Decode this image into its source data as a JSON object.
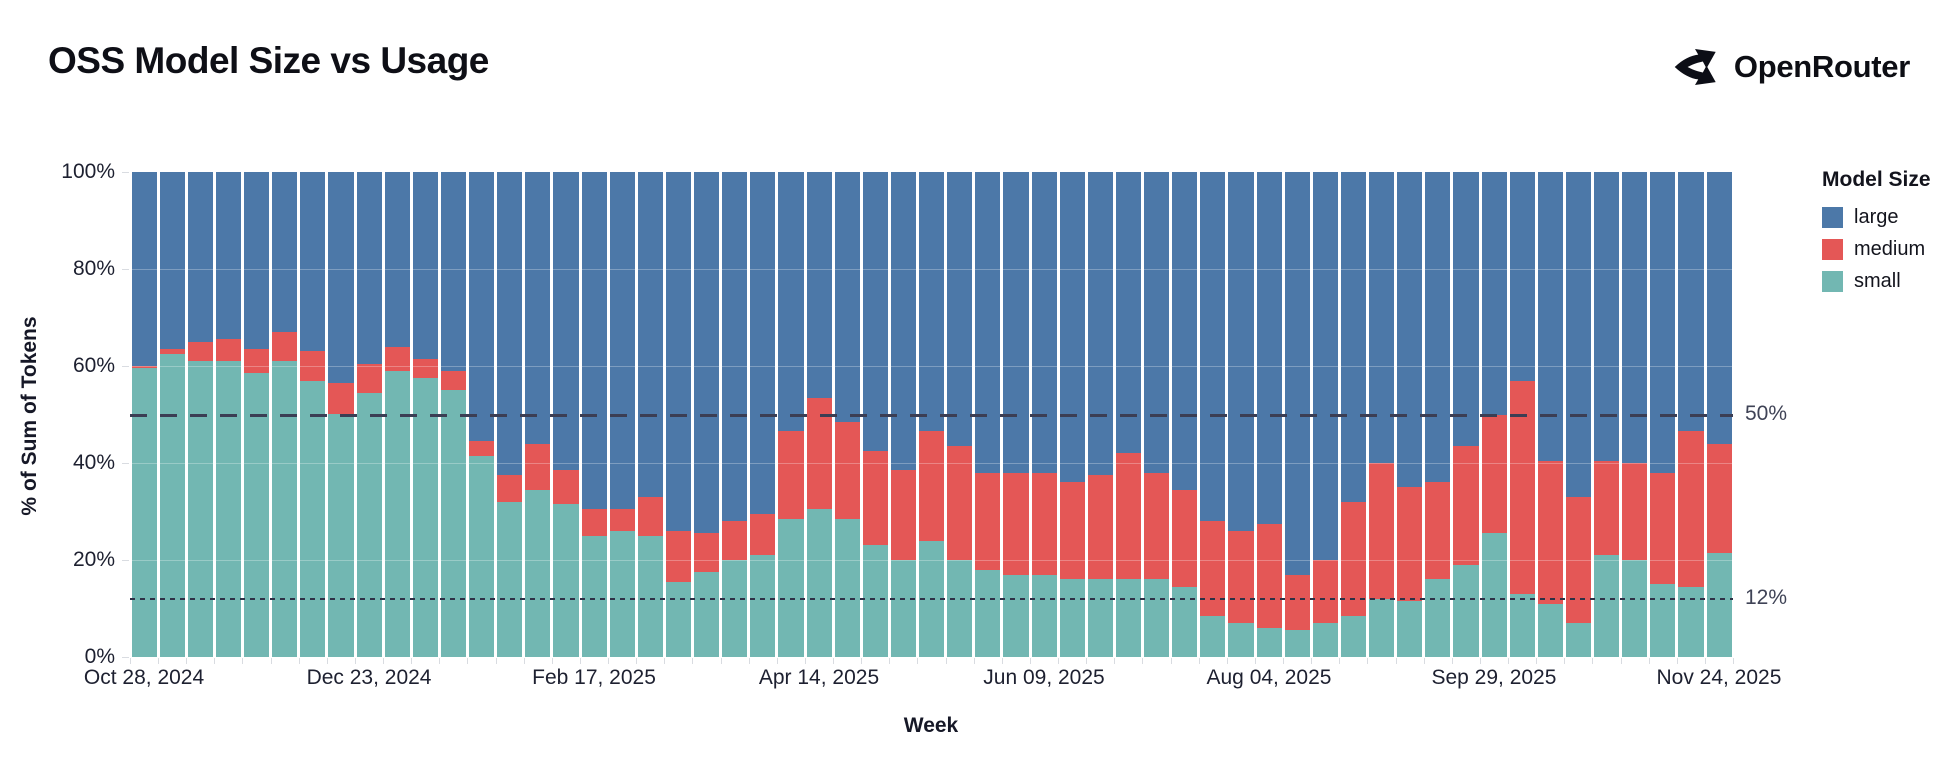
{
  "header": {
    "title": "OSS Model Size vs Usage",
    "brand": "OpenRouter"
  },
  "annotations": {
    "ref_50_label": "50%",
    "ref_12_label": "12%"
  },
  "chart_data": {
    "type": "bar",
    "stacked": true,
    "title": "OSS Model Size vs Usage",
    "xlabel": "Week",
    "ylabel": "% of Sum of Tokens",
    "legend_title": "Model Size",
    "legend_position": "right",
    "legend_order": [
      "large",
      "medium",
      "small"
    ],
    "grid": true,
    "ylim": [
      0,
      100
    ],
    "y_ticks": [
      "0%",
      "20%",
      "40%",
      "60%",
      "80%",
      "100%"
    ],
    "y_tick_values": [
      0,
      20,
      40,
      60,
      80,
      100
    ],
    "x_tick_labels": [
      "Oct 28, 2024",
      "Dec 23, 2024",
      "Feb 17, 2025",
      "Apr 14, 2025",
      "Jun 09, 2025",
      "Aug 04, 2025",
      "Sep 29, 2025",
      "Nov 24, 2025"
    ],
    "x_tick_bar_indices": [
      0,
      8,
      16,
      24,
      32,
      40,
      48,
      56
    ],
    "weeks": [
      "2024-10-28",
      "2024-11-04",
      "2024-11-11",
      "2024-11-18",
      "2024-11-25",
      "2024-12-02",
      "2024-12-09",
      "2024-12-16",
      "2024-12-23",
      "2024-12-30",
      "2025-01-06",
      "2025-01-13",
      "2025-01-20",
      "2025-01-27",
      "2025-02-03",
      "2025-02-10",
      "2025-02-17",
      "2025-02-24",
      "2025-03-03",
      "2025-03-10",
      "2025-03-17",
      "2025-03-24",
      "2025-03-31",
      "2025-04-07",
      "2025-04-14",
      "2025-04-21",
      "2025-04-28",
      "2025-05-05",
      "2025-05-12",
      "2025-05-19",
      "2025-05-26",
      "2025-06-02",
      "2025-06-09",
      "2025-06-16",
      "2025-06-23",
      "2025-06-30",
      "2025-07-07",
      "2025-07-14",
      "2025-07-21",
      "2025-07-28",
      "2025-08-04",
      "2025-08-11",
      "2025-08-18",
      "2025-08-25",
      "2025-09-01",
      "2025-09-08",
      "2025-09-15",
      "2025-09-22",
      "2025-09-29",
      "2025-10-06",
      "2025-10-13",
      "2025-10-20",
      "2025-10-27",
      "2025-11-03",
      "2025-11-10",
      "2025-11-17",
      "2025-11-24"
    ],
    "series": [
      {
        "name": "small",
        "color": "#72b7b2",
        "values": [
          59.5,
          62.5,
          61,
          61,
          58.5,
          61,
          57,
          50,
          54.5,
          59,
          57.5,
          55,
          41.5,
          32,
          34.5,
          31.5,
          25,
          26,
          25,
          15.5,
          17.5,
          20,
          21,
          28.5,
          30.5,
          28.5,
          23,
          20,
          24,
          20,
          18,
          17,
          17,
          16,
          16,
          16,
          16,
          14.5,
          8.5,
          7,
          6,
          5.5,
          7,
          8.5,
          12,
          11.5,
          16,
          19,
          25.5,
          13,
          11,
          7,
          21,
          20,
          15,
          14.5,
          21.5
        ]
      },
      {
        "name": "medium",
        "color": "#e45756",
        "values": [
          0.5,
          1,
          4,
          4.5,
          5,
          6,
          6,
          6.5,
          6,
          5,
          4,
          4,
          3,
          5.5,
          9.5,
          7,
          5.5,
          4.5,
          8,
          10.5,
          8,
          8,
          8.5,
          18,
          23,
          20,
          19.5,
          18.5,
          22.5,
          23.5,
          20,
          21,
          21,
          20,
          21.5,
          26,
          22,
          20,
          19.5,
          19,
          21.5,
          11.5,
          13,
          23.5,
          28,
          23.5,
          20,
          24.5,
          24.5,
          44,
          29.5,
          26,
          19.5,
          20,
          23,
          32,
          22.5
        ]
      },
      {
        "name": "large",
        "color": "#4c78a8",
        "values": [
          40,
          36.5,
          35,
          34.5,
          36.5,
          33,
          37,
          43.5,
          39.5,
          36,
          38.5,
          41,
          55.5,
          62.5,
          56,
          61.5,
          69.5,
          69.5,
          67,
          74,
          74.5,
          72,
          70.5,
          53.5,
          46.5,
          51.5,
          57.5,
          61.5,
          53.5,
          56.5,
          62,
          62,
          62,
          64,
          62.5,
          58,
          62,
          65.5,
          72,
          74,
          72.5,
          83,
          80,
          68,
          60,
          65,
          64,
          56.5,
          50,
          43,
          59.5,
          67,
          59.5,
          60,
          62,
          53.5,
          56
        ]
      }
    ],
    "reference_lines": [
      {
        "label": "50%",
        "value": 50,
        "style": "dashed"
      },
      {
        "label": "12%",
        "value": 12,
        "style": "dotted"
      }
    ]
  },
  "colors": {
    "large": "#4c78a8",
    "medium": "#e45756",
    "small": "#72b7b2",
    "axis_text": "#1d2030",
    "ref_line": "#3b3e54"
  }
}
